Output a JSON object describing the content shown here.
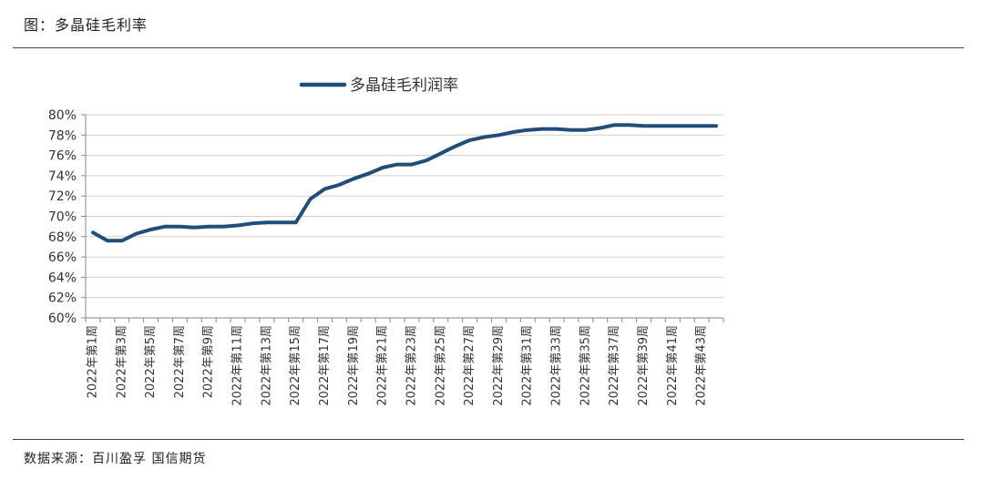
{
  "header": {
    "figure_title": "图：多晶硅毛利率"
  },
  "footer": {
    "source": "数据来源：百川盈孚  国信期货"
  },
  "colors": {
    "series": "#1f4e79",
    "grid": "#d0d0d0",
    "axis": "#888888",
    "rule": "#444444"
  },
  "chart_data": {
    "type": "line",
    "legend_position": "top-center",
    "grid": true,
    "ylim": [
      0.6,
      0.8
    ],
    "y_ticks": [
      "60%",
      "62%",
      "64%",
      "66%",
      "68%",
      "70%",
      "72%",
      "74%",
      "76%",
      "78%",
      "80%"
    ],
    "x": [
      "2022年第1周",
      "2022年第2周",
      "2022年第3周",
      "2022年第4周",
      "2022年第5周",
      "2022年第6周",
      "2022年第7周",
      "2022年第8周",
      "2022年第9周",
      "2022年第10周",
      "2022年第11周",
      "2022年第12周",
      "2022年第13周",
      "2022年第14周",
      "2022年第15周",
      "2022年第16周",
      "2022年第17周",
      "2022年第18周",
      "2022年第19周",
      "2022年第20周",
      "2022年第21周",
      "2022年第22周",
      "2022年第23周",
      "2022年第24周",
      "2022年第25周",
      "2022年第26周",
      "2022年第27周",
      "2022年第28周",
      "2022年第29周",
      "2022年第30周",
      "2022年第31周",
      "2022年第32周",
      "2022年第33周",
      "2022年第34周",
      "2022年第35周",
      "2022年第36周",
      "2022年第37周",
      "2022年第38周",
      "2022年第39周",
      "2022年第40周",
      "2022年第41周",
      "2022年第42周",
      "2022年第43周",
      "2022年第44周"
    ],
    "x_tick_labels": [
      "2022年第1周",
      "",
      "2022年第3周",
      "",
      "2022年第5周",
      "",
      "2022年第7周",
      "",
      "2022年第9周",
      "",
      "2022年第11周",
      "",
      "2022年第13周",
      "",
      "2022年第15周",
      "",
      "2022年第17周",
      "",
      "2022年第19周",
      "",
      "2022年第21周",
      "",
      "2022年第23周",
      "",
      "2022年第25周",
      "",
      "2022年第27周",
      "",
      "2022年第29周",
      "",
      "2022年第31周",
      "",
      "2022年第33周",
      "",
      "2022年第35周",
      "",
      "2022年第37周",
      "",
      "2022年第39周",
      "",
      "2022年第41周",
      "",
      "2022年第43周",
      ""
    ],
    "series": [
      {
        "name": "多晶硅毛利润率",
        "values": [
          0.684,
          0.676,
          0.676,
          0.683,
          0.687,
          0.69,
          0.69,
          0.689,
          0.69,
          0.69,
          0.691,
          0.693,
          0.694,
          0.694,
          0.694,
          0.717,
          0.727,
          0.731,
          0.737,
          0.742,
          0.748,
          0.751,
          0.751,
          0.755,
          0.762,
          0.769,
          0.775,
          0.778,
          0.78,
          0.783,
          0.785,
          0.786,
          0.786,
          0.785,
          0.785,
          0.787,
          0.79,
          0.79,
          0.789,
          0.789,
          0.789,
          0.789,
          0.789,
          0.789
        ]
      }
    ]
  }
}
